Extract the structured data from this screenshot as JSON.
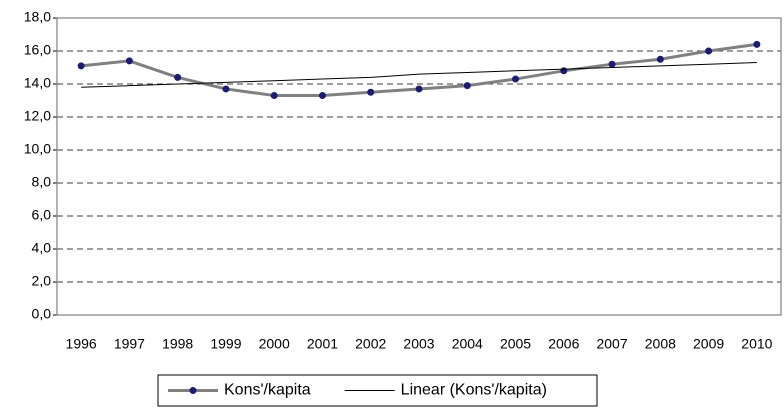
{
  "chart_data": {
    "type": "line",
    "categories": [
      "1996",
      "1997",
      "1998",
      "1999",
      "2000",
      "2001",
      "2002",
      "2003",
      "2004",
      "2005",
      "2006",
      "2007",
      "2008",
      "2009",
      "2010"
    ],
    "series": [
      {
        "name": "Kons'/kapita",
        "color": "#808080",
        "marker_color": "#1c1c73",
        "marker": true,
        "values": [
          15.1,
          15.4,
          14.4,
          13.7,
          13.3,
          13.3,
          13.5,
          13.7,
          13.9,
          14.3,
          14.8,
          15.2,
          15.5,
          16.0,
          16.4
        ]
      },
      {
        "name": "Linear (Kons'/kapita)",
        "color": "#000000",
        "marker": false,
        "values": [
          13.8,
          13.9,
          14.0,
          14.1,
          14.2,
          14.3,
          14.4,
          14.6,
          14.7,
          14.8,
          14.9,
          15.0,
          15.1,
          15.2,
          15.3
        ]
      }
    ],
    "ylim": [
      0,
      18
    ],
    "yticks": [
      {
        "value": 0,
        "label": "0,0"
      },
      {
        "value": 2,
        "label": "2,0"
      },
      {
        "value": 4,
        "label": "4,0"
      },
      {
        "value": 6,
        "label": "6,0"
      },
      {
        "value": 8,
        "label": "8,0"
      },
      {
        "value": 10,
        "label": "10,0"
      },
      {
        "value": 12,
        "label": "12,0"
      },
      {
        "value": 14,
        "label": "14,0"
      },
      {
        "value": 16,
        "label": "16,0"
      },
      {
        "value": 18,
        "label": "18,0"
      }
    ],
    "grid": true,
    "legend": "bottom"
  }
}
